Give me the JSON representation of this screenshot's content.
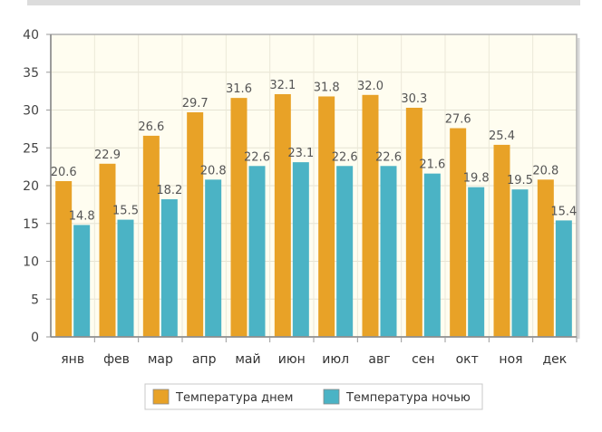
{
  "chart_data": {
    "type": "bar",
    "categories": [
      "янв",
      "фев",
      "мар",
      "апр",
      "май",
      "июн",
      "июл",
      "авг",
      "сен",
      "окт",
      "ноя",
      "дек"
    ],
    "series": [
      {
        "name": "Температура днем",
        "color": "#e8a227",
        "values": [
          20.6,
          22.9,
          26.6,
          29.7,
          31.6,
          32.1,
          31.8,
          32.0,
          30.3,
          27.6,
          25.4,
          20.8
        ],
        "labels": [
          "20.6",
          "22.9",
          "26.6",
          "29.7",
          "31.6",
          "32.1",
          "31.8",
          "32.0",
          "30.3",
          "27.6",
          "25.4",
          "20.8"
        ]
      },
      {
        "name": "Температура ночью",
        "color": "#4bb3c5",
        "values": [
          14.8,
          15.5,
          18.2,
          20.8,
          22.6,
          23.1,
          22.6,
          22.6,
          21.6,
          19.8,
          19.5,
          15.4
        ],
        "labels": [
          "14.8",
          "15.5",
          "18.2",
          "20.8",
          "22.6",
          "23.1",
          "22.6",
          "22.6",
          "21.6",
          "19.8",
          "19.5",
          "15.4"
        ]
      }
    ],
    "yticks": [
      "0",
      "5",
      "10",
      "15",
      "20",
      "25",
      "30",
      "35",
      "40"
    ],
    "ylim": [
      0,
      40
    ],
    "grid": true,
    "legend_position": "bottom-center",
    "plot_background": "#fffdf0"
  }
}
